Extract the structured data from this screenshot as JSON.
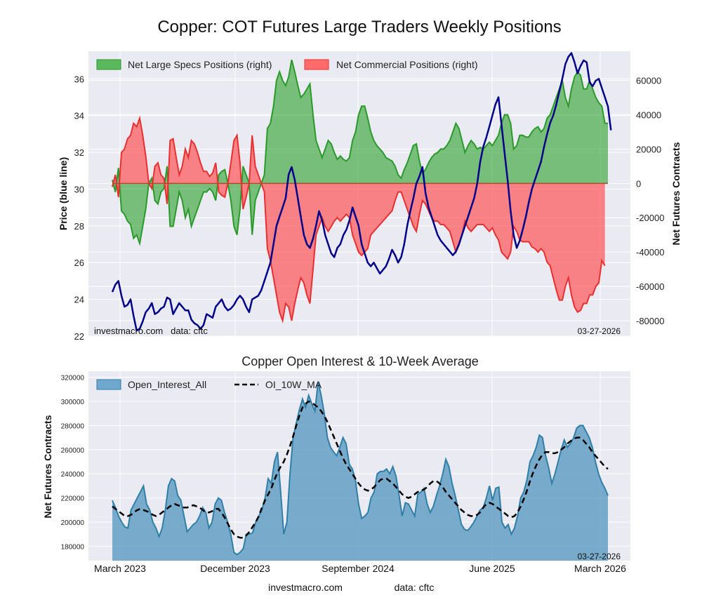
{
  "page": {
    "title": "Copper: COT Futures Large Traders Weekly Positions",
    "footer_site": "investmacro.com",
    "footer_data": "data: cftc"
  },
  "colors": {
    "price": "#00008b",
    "specs_fill": "#2ca02c",
    "specs_line": "#2a9a2a",
    "comm_fill": "#ff3b3b",
    "comm_line": "#e83030",
    "oi_fill": "#5b9bc0",
    "oi_line": "#2f7fa8",
    "ma_line": "#000000",
    "panel_bg": "#eaeaf2",
    "grid": "#ffffff"
  },
  "chart_data": [
    {
      "type": "line",
      "title": "",
      "ylabel_left": "Price (blue line)",
      "ylabel_right": "Net Futures Contracts",
      "watermark_left": "investmacro.com   data: cftc",
      "date_label": "03-27-2026",
      "left_ylim": [
        22,
        37.5
      ],
      "left_yticks": [
        22,
        24,
        26,
        28,
        30,
        32,
        34,
        36
      ],
      "right_ylim": [
        -89000,
        77000
      ],
      "right_yticks": [
        "-80000",
        "-60000",
        "-40000",
        "-20000",
        "0",
        "20000",
        "40000",
        "60000"
      ],
      "legend_position": "top-left",
      "grid": true,
      "x_index_range": [
        0,
        161
      ],
      "series": [
        {
          "name": "Net Large Specs Positions (right)",
          "kind": "area",
          "axis": "right",
          "values": [
            2000,
            -5000,
            9000,
            -16000,
            -18000,
            -22000,
            -24000,
            -32000,
            -30000,
            -35000,
            -25000,
            -15000,
            0,
            3000,
            -10000,
            -12000,
            -5000,
            -3000,
            10000,
            -25000,
            -25000,
            -15000,
            -5000,
            -10000,
            -20000,
            -15000,
            -25000,
            -20000,
            -15000,
            -10000,
            -5000,
            -5000,
            -3000,
            -5000,
            -10000,
            5000,
            7000,
            8000,
            0,
            -10000,
            -25000,
            -30000,
            -15000,
            10000,
            5000,
            0,
            -30000,
            -10000,
            -5000,
            0,
            5000,
            32000,
            35000,
            45000,
            60000,
            65000,
            60000,
            57000,
            62000,
            72000,
            65000,
            57000,
            50000,
            52000,
            55000,
            58000,
            40000,
            25000,
            20000,
            15000,
            20000,
            25000,
            23000,
            18000,
            14000,
            16000,
            14000,
            13000,
            15000,
            25000,
            30000,
            40000,
            45000,
            45000,
            38000,
            30000,
            25000,
            22000,
            20000,
            18000,
            15000,
            14000,
            13000,
            10000,
            5000,
            3000,
            8000,
            12000,
            17000,
            22000,
            23000,
            13000,
            6000,
            8000,
            12000,
            15000,
            17000,
            18000,
            20000,
            20000,
            22000,
            25000,
            30000,
            35000,
            32000,
            25000,
            18000,
            22000,
            25000,
            23000,
            20000,
            21000,
            20000,
            22000,
            24000,
            22000,
            25000,
            28000,
            35000,
            40000,
            40000,
            35000,
            20000,
            22000,
            28000,
            28000,
            27000,
            27000,
            30000,
            32000,
            33000,
            30000,
            32000,
            38000,
            40000,
            45000,
            50000,
            55000,
            60000,
            50000,
            45000,
            55000,
            62000,
            65000,
            63000,
            55000,
            55000,
            60000,
            55000,
            50000,
            47000,
            45000,
            35000,
            35000
          ],
          "color_key": "specs_fill"
        },
        {
          "name": "Net Commercial Positions (right)",
          "kind": "area",
          "axis": "right",
          "values": [
            -2000,
            5000,
            -8000,
            18000,
            20000,
            26000,
            28000,
            35000,
            33000,
            38000,
            28000,
            16000,
            0,
            -3000,
            10000,
            12000,
            5000,
            3000,
            -12000,
            25000,
            26000,
            15000,
            5000,
            10000,
            20000,
            15000,
            25000,
            23000,
            18000,
            12000,
            7000,
            7000,
            4000,
            6000,
            12000,
            -5000,
            -7000,
            -8000,
            0,
            12000,
            25000,
            28000,
            12000,
            -15000,
            -8000,
            0,
            28000,
            10000,
            5000,
            0,
            -5000,
            -38000,
            -45000,
            -55000,
            -65000,
            -75000,
            -80000,
            -70000,
            -72000,
            -80000,
            -70000,
            -62000,
            -55000,
            -58000,
            -65000,
            -70000,
            -50000,
            -30000,
            -25000,
            -20000,
            -25000,
            -28000,
            -25000,
            -22000,
            -20000,
            -22000,
            -20000,
            -18000,
            -20000,
            -30000,
            -35000,
            -40000,
            -42000,
            -40000,
            -38000,
            -30000,
            -28000,
            -26000,
            -24000,
            -22000,
            -20000,
            -18000,
            -16000,
            -10000,
            -5000,
            -5000,
            -10000,
            -15000,
            -20000,
            -25000,
            -28000,
            -18000,
            -10000,
            -12000,
            -16000,
            -20000,
            -22000,
            -22000,
            -24000,
            -24000,
            -26000,
            -28000,
            -34000,
            -40000,
            -36000,
            -30000,
            -22000,
            -26000,
            -28000,
            -26000,
            -24000,
            -24000,
            -24000,
            -26000,
            -28000,
            -26000,
            -30000,
            -33000,
            -40000,
            -42000,
            -44000,
            -40000,
            -25000,
            -28000,
            -33000,
            -34000,
            -34000,
            -34000,
            -37000,
            -38000,
            -40000,
            -38000,
            -40000,
            -46000,
            -48000,
            -55000,
            -62000,
            -68000,
            -68000,
            -60000,
            -55000,
            -65000,
            -72000,
            -75000,
            -74000,
            -70000,
            -70000,
            -65000,
            -65000,
            -60000,
            -58000,
            -45000,
            -48000
          ],
          "color_key": "comm_fill"
        },
        {
          "name": "",
          "kind": "line",
          "axis": "left",
          "values": [
            24.4,
            24.8,
            25.0,
            24.2,
            23.6,
            23.7,
            24.0,
            23.1,
            22.3,
            22.4,
            22.8,
            23.3,
            23.5,
            23.8,
            23.2,
            23.3,
            23.5,
            23.6,
            24.1,
            24.0,
            23.2,
            23.5,
            23.8,
            23.6,
            23.4,
            23.4,
            22.9,
            22.7,
            22.6,
            22.4,
            22.6,
            23.2,
            23.1,
            23.0,
            23.6,
            23.8,
            24.0,
            23.6,
            23.4,
            23.5,
            23.7,
            24.0,
            24.2,
            24.0,
            23.6,
            23.3,
            24.0,
            24.1,
            24.2,
            24.5,
            25.0,
            25.5,
            26.0,
            27.0,
            28.0,
            28.5,
            29.0,
            29.5,
            30.8,
            31.2,
            30.5,
            29.5,
            28.5,
            27.5,
            27.0,
            26.8,
            27.3,
            28.0,
            28.8,
            28.3,
            27.5,
            27.0,
            26.5,
            26.3,
            26.8,
            27.0,
            27.5,
            27.8,
            28.3,
            29.0,
            28.5,
            28.0,
            27.0,
            26.5,
            26.0,
            25.8,
            26.0,
            25.7,
            25.4,
            25.6,
            25.8,
            26.2,
            26.7,
            26.4,
            26.0,
            26.3,
            27.0,
            28.0,
            28.8,
            29.5,
            30.3,
            30.7,
            31.2,
            29.8,
            29.0,
            28.5,
            28.0,
            27.5,
            27.2,
            27.0,
            26.8,
            26.6,
            26.4,
            26.6,
            27.0,
            27.5,
            28.0,
            28.5,
            29.0,
            29.5,
            30.3,
            31.5,
            32.3,
            32.8,
            33.4,
            34.0,
            34.6,
            35.0,
            33.5,
            32.0,
            30.5,
            28.8,
            27.5,
            26.8,
            27.2,
            27.8,
            28.5,
            29.3,
            30.0,
            30.5,
            31.0,
            31.5,
            32.3,
            33.0,
            33.6,
            34.0,
            34.6,
            35.3,
            36.0,
            36.8,
            37.2,
            37.4,
            36.9,
            36.3,
            36.7,
            37.0,
            36.9,
            35.8,
            35.6,
            35.9,
            36.0,
            35.5,
            35.0,
            34.5,
            33.2
          ],
          "color_key": "price"
        }
      ]
    },
    {
      "type": "area",
      "title": "Copper Open Interest & 10-Week Average",
      "ylabel": "Net Futures Contracts",
      "xlabel": "",
      "date_label": "03-27-2026",
      "ylim": [
        168000,
        325000
      ],
      "yticks": [
        "180000",
        "200000",
        "220000",
        "240000",
        "260000",
        "280000",
        "300000",
        "320000"
      ],
      "x_tick_labels": [
        "March 2023",
        "December 2023",
        "September 2024",
        "June 2025",
        "March 2026"
      ],
      "legend_position": "top-left",
      "grid": true,
      "series": [
        {
          "name": "Open_Interest_All",
          "kind": "area",
          "values": [
            218000,
            212000,
            205000,
            200000,
            196000,
            195000,
            210000,
            215000,
            220000,
            225000,
            230000,
            215000,
            210000,
            200000,
            195000,
            188000,
            195000,
            210000,
            230000,
            236000,
            234000,
            222000,
            218000,
            205000,
            192000,
            195000,
            198000,
            200000,
            205000,
            212000,
            208000,
            195000,
            200000,
            215000,
            220000,
            218000,
            208000,
            200000,
            190000,
            175000,
            173000,
            175000,
            178000,
            190000,
            190000,
            191000,
            200000,
            205000,
            210000,
            220000,
            236000,
            232000,
            250000,
            258000,
            225000,
            190000,
            200000,
            240000,
            270000,
            282000,
            293000,
            302000,
            295000,
            305000,
            298000,
            292000,
            316000,
            305000,
            290000,
            270000,
            262000,
            258000,
            255000,
            262000,
            270000,
            265000,
            248000,
            244000,
            235000,
            215000,
            203000,
            205000,
            208000,
            220000,
            225000,
            240000,
            242000,
            242000,
            244000,
            240000,
            246000,
            238000,
            222000,
            205000,
            216000,
            215000,
            210000,
            205000,
            223000,
            225000,
            228000,
            215000,
            208000,
            213000,
            222000,
            230000,
            240000,
            252000,
            246000,
            232000,
            222000,
            210000,
            198000,
            194000,
            193000,
            196000,
            200000,
            205000,
            210000,
            212000,
            220000,
            230000,
            218000,
            228000,
            229000,
            200000,
            195000,
            198000,
            190000,
            195000,
            205000,
            220000,
            225000,
            235000,
            250000,
            255000,
            262000,
            272000,
            270000,
            255000,
            245000,
            232000,
            240000,
            250000,
            260000,
            268000,
            262000,
            265000,
            270000,
            278000,
            280000,
            280000,
            275000,
            270000,
            262000,
            250000,
            240000,
            233000,
            228000,
            222000
          ],
          "color_key": "oi_fill"
        },
        {
          "name": "OI_10W_MA",
          "kind": "line",
          "dashed": true,
          "values": [
            213000,
            211000,
            209000,
            207000,
            205000,
            205000,
            206000,
            208000,
            210000,
            211000,
            210000,
            209000,
            208000,
            206000,
            205000,
            206000,
            208000,
            210000,
            212000,
            214000,
            215000,
            214000,
            213000,
            212000,
            212000,
            213000,
            214000,
            213000,
            212000,
            210000,
            208000,
            208000,
            209000,
            211000,
            211000,
            208000,
            204000,
            199000,
            194000,
            190000,
            188000,
            187000,
            187000,
            189000,
            192000,
            196000,
            200000,
            205000,
            212000,
            218000,
            223000,
            228000,
            235000,
            241000,
            246000,
            250000,
            256000,
            263000,
            271000,
            280000,
            288000,
            295000,
            298000,
            300000,
            299000,
            297000,
            295000,
            292000,
            288000,
            283000,
            277000,
            271000,
            265000,
            259000,
            253000,
            248000,
            244000,
            240000,
            236000,
            232000,
            229000,
            227000,
            226000,
            227000,
            229000,
            232000,
            235000,
            236000,
            236000,
            234000,
            232000,
            229000,
            226000,
            223000,
            221000,
            220000,
            221000,
            223000,
            225000,
            226000,
            227000,
            229000,
            232000,
            234000,
            234000,
            232000,
            229000,
            225000,
            222000,
            219000,
            216000,
            213000,
            210000,
            208000,
            206000,
            205000,
            205000,
            206000,
            208000,
            212000,
            215000,
            216000,
            215000,
            213000,
            211000,
            209000,
            207000,
            205000,
            204000,
            205000,
            208000,
            213000,
            219000,
            226000,
            234000,
            241000,
            247000,
            252000,
            256000,
            258000,
            258000,
            257000,
            257000,
            258000,
            260000,
            262000,
            265000,
            267000,
            269000,
            270000,
            270000,
            268000,
            265000,
            262000,
            258000,
            255000,
            252000,
            249000,
            246000,
            244000
          ],
          "color_key": "ma_line"
        }
      ]
    }
  ]
}
